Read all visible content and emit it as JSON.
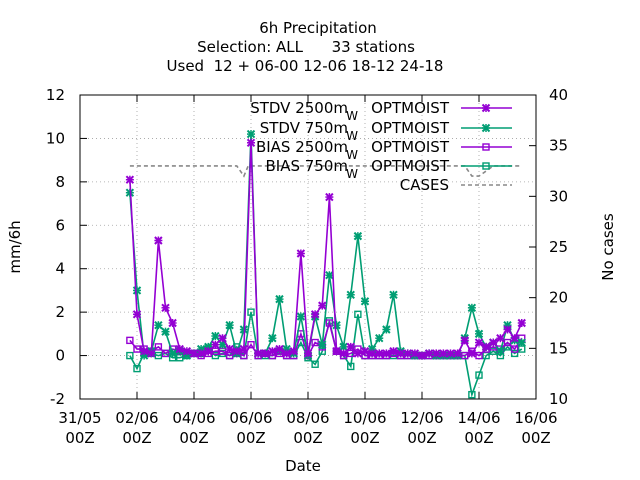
{
  "chart_data": {
    "type": "line",
    "title_lines": [
      "6h Precipitation",
      "Selection: ALL      33 stations",
      "Used  12 + 06-00 12-06 18-12 24-18"
    ],
    "xlabel": "Date",
    "ylabel": "mm/6h",
    "y2label": "No cases",
    "xlim": [
      0,
      16
    ],
    "ylim": [
      -2,
      12
    ],
    "y2lim": [
      10,
      40
    ],
    "x_ticks": [
      {
        "x": 0,
        "top": "31/05",
        "bottom": "00Z"
      },
      {
        "x": 2,
        "top": "02/06",
        "bottom": "00Z"
      },
      {
        "x": 4,
        "top": "04/06",
        "bottom": "00Z"
      },
      {
        "x": 6,
        "top": "06/06",
        "bottom": "00Z"
      },
      {
        "x": 8,
        "top": "08/06",
        "bottom": "00Z"
      },
      {
        "x": 10,
        "top": "10/06",
        "bottom": "00Z"
      },
      {
        "x": 12,
        "top": "12/06",
        "bottom": "00Z"
      },
      {
        "x": 14,
        "top": "14/06",
        "bottom": "00Z"
      },
      {
        "x": 16,
        "top": "16/06",
        "bottom": "00Z"
      }
    ],
    "y_ticks": [
      -2,
      0,
      2,
      4,
      6,
      8,
      10,
      12
    ],
    "y2_ticks": [
      10,
      15,
      20,
      25,
      30,
      35,
      40
    ],
    "series": [
      {
        "id": "stdv2500",
        "name_main": "STDV 2500m",
        "name_sub": "W",
        "name_tail": "OPTMOIST",
        "axis": "y",
        "color": "#9400d3",
        "marker": "x",
        "x": [
          1.75,
          2.0,
          2.25,
          2.5,
          2.75,
          3.0,
          3.25,
          3.5,
          3.75,
          4.0,
          4.25,
          4.5,
          4.75,
          5.0,
          5.25,
          5.5,
          5.75,
          6.0,
          6.25,
          6.5,
          6.75,
          7.0,
          7.25,
          7.5,
          7.75,
          8.0,
          8.25,
          8.5,
          8.75,
          9.0,
          9.25,
          9.5,
          9.75,
          10.0,
          10.25,
          10.5,
          10.75,
          11.0,
          11.25,
          11.5,
          11.75,
          12.0,
          12.25,
          12.5,
          12.75,
          13.0,
          13.25,
          13.5,
          13.75,
          14.0,
          14.25,
          14.5,
          14.75,
          15.0,
          15.25,
          15.5
        ],
        "values": [
          8.1,
          1.9,
          0.2,
          0.1,
          5.3,
          2.2,
          1.5,
          0.3,
          0.2,
          0.1,
          0.1,
          0.2,
          0.5,
          0.8,
          0.3,
          0.2,
          0.3,
          9.8,
          0.1,
          0.1,
          0.2,
          0.3,
          0.1,
          0.2,
          4.7,
          0.1,
          1.9,
          2.3,
          7.3,
          0.2,
          0.1,
          0.4,
          0.1,
          0.2,
          0.1,
          0.1,
          0.1,
          0.2,
          0.1,
          0.1,
          0.1,
          0.0,
          0.1,
          0.1,
          0.1,
          0.1,
          0.1,
          0.7,
          0.1,
          0.6,
          0.4,
          0.6,
          0.8,
          1.2,
          0.8,
          1.5
        ]
      },
      {
        "id": "stdv750",
        "name_main": "STDV 750m",
        "name_sub": "W",
        "name_tail": "OPTMOIST",
        "axis": "y",
        "color": "#009e73",
        "marker": "x",
        "x": [
          1.75,
          2.0,
          2.25,
          2.5,
          2.75,
          3.0,
          3.25,
          3.5,
          3.75,
          4.0,
          4.25,
          4.5,
          4.75,
          5.0,
          5.25,
          5.5,
          5.75,
          6.0,
          6.25,
          6.5,
          6.75,
          7.0,
          7.25,
          7.5,
          7.75,
          8.0,
          8.25,
          8.5,
          8.75,
          9.0,
          9.25,
          9.5,
          9.75,
          10.0,
          10.25,
          10.5,
          10.75,
          11.0,
          11.25,
          11.5,
          11.75,
          12.0,
          12.25,
          12.5,
          12.75,
          13.0,
          13.25,
          13.5,
          13.75,
          14.0,
          14.25,
          14.5,
          14.75,
          15.0,
          15.25,
          15.5
        ],
        "values": [
          7.5,
          3.0,
          0.0,
          0.2,
          1.4,
          1.1,
          0.1,
          0.2,
          0.0,
          0.1,
          0.3,
          0.4,
          0.9,
          0.5,
          1.4,
          0.1,
          1.2,
          10.2,
          0.1,
          0.1,
          0.8,
          2.6,
          0.3,
          0.1,
          1.8,
          0.0,
          1.8,
          0.5,
          3.7,
          1.4,
          0.4,
          2.8,
          5.5,
          2.5,
          0.3,
          0.8,
          1.2,
          2.8,
          0.2,
          0.1,
          0.0,
          0.0,
          0.1,
          0.0,
          0.0,
          0.0,
          0.0,
          0.8,
          2.2,
          1.0,
          0.4,
          0.6,
          0.2,
          1.4,
          0.7,
          0.6
        ]
      },
      {
        "id": "bias2500",
        "name_main": "BIAS 2500m",
        "name_sub": "W",
        "name_tail": "OPTMOIST",
        "axis": "y",
        "color": "#9400d3",
        "marker": "square",
        "x": [
          1.75,
          2.0,
          2.25,
          2.5,
          2.75,
          3.0,
          3.25,
          3.5,
          3.75,
          4.0,
          4.25,
          4.5,
          4.75,
          5.0,
          5.25,
          5.5,
          5.75,
          6.0,
          6.25,
          6.5,
          6.75,
          7.0,
          7.25,
          7.5,
          7.75,
          8.0,
          8.25,
          8.5,
          8.75,
          9.0,
          9.25,
          9.5,
          9.75,
          10.0,
          10.25,
          10.5,
          10.75,
          11.0,
          11.25,
          11.5,
          11.75,
          12.0,
          12.25,
          12.5,
          12.75,
          13.0,
          13.25,
          13.5,
          13.75,
          14.0,
          14.25,
          14.5,
          14.75,
          15.0,
          15.25,
          15.5
        ],
        "values": [
          0.7,
          0.3,
          0.3,
          0.2,
          0.4,
          0.1,
          0.3,
          0.2,
          0.1,
          0.1,
          0.0,
          0.1,
          0.2,
          0.2,
          0.0,
          0.1,
          0.0,
          0.5,
          0.0,
          0.1,
          0.0,
          0.1,
          0.0,
          0.0,
          1.0,
          0.0,
          0.6,
          0.4,
          1.5,
          0.2,
          0.0,
          0.1,
          0.3,
          0.0,
          0.0,
          0.0,
          0.0,
          0.1,
          0.0,
          0.0,
          0.0,
          0.0,
          0.0,
          0.0,
          0.0,
          0.0,
          0.0,
          0.0,
          0.2,
          0.0,
          0.3,
          0.4,
          0.3,
          0.6,
          0.3,
          0.8
        ]
      },
      {
        "id": "bias750",
        "name_main": "BIAS 750m",
        "name_sub": "W",
        "name_tail": "OPTMOIST",
        "axis": "y",
        "color": "#009e73",
        "marker": "square",
        "x": [
          1.75,
          2.0,
          2.25,
          2.5,
          2.75,
          3.0,
          3.25,
          3.5,
          3.75,
          4.0,
          4.25,
          4.5,
          4.75,
          5.0,
          5.25,
          5.5,
          5.75,
          6.0,
          6.25,
          6.5,
          6.75,
          7.0,
          7.25,
          7.5,
          7.75,
          8.0,
          8.25,
          8.5,
          8.75,
          9.0,
          9.25,
          9.5,
          9.75,
          10.0,
          10.25,
          10.5,
          10.75,
          11.0,
          11.25,
          11.5,
          11.75,
          12.0,
          12.25,
          12.5,
          12.75,
          13.0,
          13.25,
          13.5,
          13.75,
          14.0,
          14.25,
          14.5,
          14.75,
          15.0,
          15.25,
          15.5
        ],
        "values": [
          0.0,
          -0.6,
          0.1,
          0.1,
          0.0,
          0.1,
          -0.1,
          -0.1,
          0.0,
          0.1,
          0.1,
          0.3,
          0.0,
          0.1,
          0.0,
          0.4,
          0.0,
          2.0,
          0.0,
          0.0,
          0.0,
          0.2,
          0.0,
          0.0,
          0.6,
          -0.1,
          -0.4,
          0.2,
          1.6,
          0.2,
          0.0,
          -0.5,
          1.9,
          0.0,
          0.0,
          0.0,
          0.0,
          0.0,
          0.0,
          0.0,
          0.0,
          0.0,
          0.0,
          0.0,
          0.0,
          0.0,
          0.0,
          0.0,
          -1.8,
          -0.9,
          0.0,
          0.2,
          0.0,
          0.4,
          0.1,
          0.3
        ]
      },
      {
        "id": "cases",
        "name_main": "CASES",
        "axis": "y2",
        "color": "#888888",
        "marker": "none",
        "dashed": true,
        "x": [
          1.75,
          2.0,
          2.5,
          3.0,
          3.5,
          4.0,
          4.5,
          5.0,
          5.5,
          5.75,
          5.9,
          6.0,
          6.25,
          6.5,
          7.0,
          7.5,
          8.0,
          8.5,
          9.0,
          9.5,
          10.0,
          10.5,
          11.0,
          11.5,
          12.0,
          12.5,
          13.0,
          13.5,
          13.75,
          14.0,
          14.5,
          15.0,
          15.5
        ],
        "values": [
          33,
          33,
          33,
          33,
          33,
          33,
          33,
          33,
          33,
          32,
          33,
          33,
          33,
          33,
          33,
          33,
          33,
          33,
          33,
          33,
          33,
          33,
          33,
          33,
          33,
          33,
          33,
          33,
          32,
          32,
          33,
          33,
          33
        ]
      }
    ]
  }
}
